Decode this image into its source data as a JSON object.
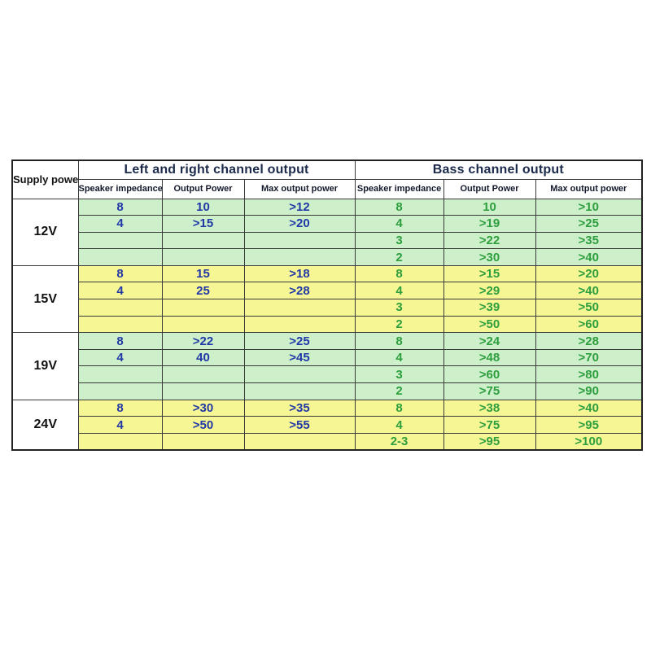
{
  "chart_data": {
    "type": "table",
    "header": {
      "supply": "Supply power",
      "left_section": "Left and right channel output",
      "bass_section": "Bass channel output",
      "sub": [
        "Speaker impedance",
        "Output Power",
        "Max output power"
      ]
    },
    "groups": [
      {
        "voltage": "12V",
        "tint": "green",
        "rows": [
          {
            "left": [
              "8",
              "10",
              ">12"
            ],
            "bass": [
              "8",
              "10",
              ">10"
            ]
          },
          {
            "left": [
              "4",
              ">15",
              ">20"
            ],
            "bass": [
              "4",
              ">19",
              ">25"
            ]
          },
          {
            "left": [
              "",
              "",
              ""
            ],
            "bass": [
              "3",
              ">22",
              ">35"
            ]
          },
          {
            "left": [
              "",
              "",
              ""
            ],
            "bass": [
              "2",
              ">30",
              ">40"
            ]
          }
        ]
      },
      {
        "voltage": "15V",
        "tint": "yellow",
        "rows": [
          {
            "left": [
              "8",
              "15",
              ">18"
            ],
            "bass": [
              "8",
              ">15",
              ">20"
            ]
          },
          {
            "left": [
              "4",
              "25",
              ">28"
            ],
            "bass": [
              "4",
              ">29",
              ">40"
            ]
          },
          {
            "left": [
              "",
              "",
              ""
            ],
            "bass": [
              "3",
              ">39",
              ">50"
            ]
          },
          {
            "left": [
              "",
              "",
              ""
            ],
            "bass": [
              "2",
              ">50",
              ">60"
            ]
          }
        ]
      },
      {
        "voltage": "19V",
        "tint": "green",
        "rows": [
          {
            "left": [
              "8",
              ">22",
              ">25"
            ],
            "bass": [
              "8",
              ">24",
              ">28"
            ]
          },
          {
            "left": [
              "4",
              "40",
              ">45"
            ],
            "bass": [
              "4",
              ">48",
              ">70"
            ]
          },
          {
            "left": [
              "",
              "",
              ""
            ],
            "bass": [
              "3",
              ">60",
              ">80"
            ]
          },
          {
            "left": [
              "",
              "",
              ""
            ],
            "bass": [
              "2",
              ">75",
              ">90"
            ]
          }
        ]
      },
      {
        "voltage": "24V",
        "tint": "yellow",
        "rows": [
          {
            "left": [
              "8",
              ">30",
              ">35"
            ],
            "bass": [
              "8",
              ">38",
              ">40"
            ]
          },
          {
            "left": [
              "4",
              ">50",
              ">55"
            ],
            "bass": [
              "4",
              ">75",
              ">95"
            ]
          },
          {
            "left": [
              "",
              "",
              ""
            ],
            "bass": [
              "2-3",
              ">95",
              ">100"
            ]
          }
        ]
      }
    ],
    "colors": {
      "green_row_bg": "#cdf0cb",
      "yellow_row_bg": "#f7f694",
      "left_value_text": "#2138a6",
      "bass_value_text": "#2e9e3e",
      "header_text": "#1b2a4a",
      "border": "#3a3a3a"
    }
  }
}
